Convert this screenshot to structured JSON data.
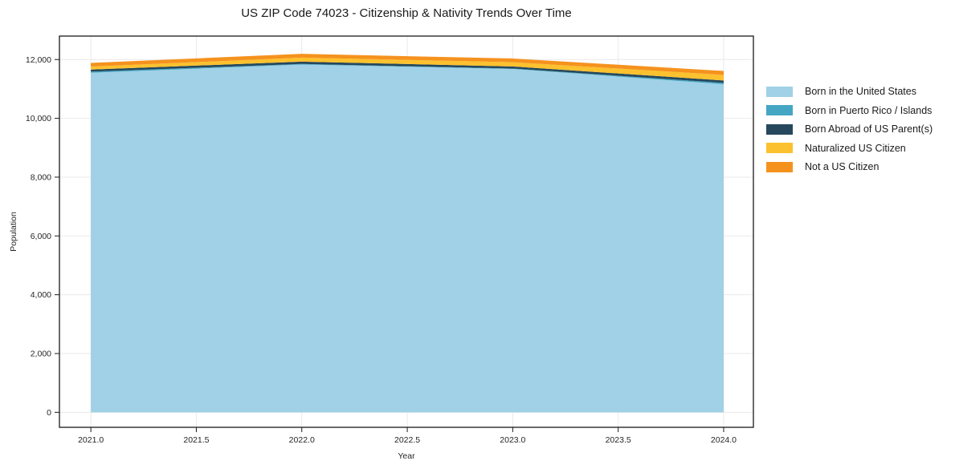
{
  "chart_data": {
    "type": "area",
    "stacked": true,
    "title": "US ZIP Code 74023 - Citizenship & Nativity Trends Over Time",
    "xlabel": "Year",
    "ylabel": "Population",
    "x": [
      2021,
      2022,
      2023,
      2024
    ],
    "series": [
      {
        "name": "Born in the United States",
        "color": "#a0d1e6",
        "values": [
          11550,
          11830,
          11680,
          11160
        ]
      },
      {
        "name": "Born in Puerto Rico / Islands",
        "color": "#45a6c3",
        "values": [
          38,
          20,
          12,
          45
        ]
      },
      {
        "name": "Born Abroad of US Parent(s)",
        "color": "#25485c",
        "values": [
          70,
          80,
          73,
          82
        ]
      },
      {
        "name": "Naturalized US Citizen",
        "color": "#fcc12e",
        "values": [
          100,
          135,
          145,
          190
        ]
      },
      {
        "name": "Not a US Citizen",
        "color": "#f5921e",
        "values": [
          128,
          130,
          125,
          136
        ]
      }
    ],
    "xlim": [
      2020.851,
      2024.141
    ],
    "ylim": [
      -509,
      12798
    ],
    "xticks": {
      "values": [
        2021,
        2021.5,
        2022,
        2022.5,
        2023,
        2023.5,
        2024
      ],
      "labels": [
        "2021.0",
        "2021.5",
        "2022.0",
        "2022.5",
        "2023.0",
        "2023.5",
        "2024.0"
      ]
    },
    "yticks": {
      "values": [
        0,
        2000,
        4000,
        6000,
        8000,
        10000,
        12000
      ],
      "labels": [
        "0",
        "2,000",
        "4,000",
        "6,000",
        "8,000",
        "10,000",
        "12,000"
      ]
    },
    "grid": true,
    "legend_position": "right"
  },
  "styles": {
    "background": "#ffffff",
    "grid_color": "#e9e9e9",
    "spine_color": "#1a1a1a",
    "tick_label_color": "#262626"
  }
}
